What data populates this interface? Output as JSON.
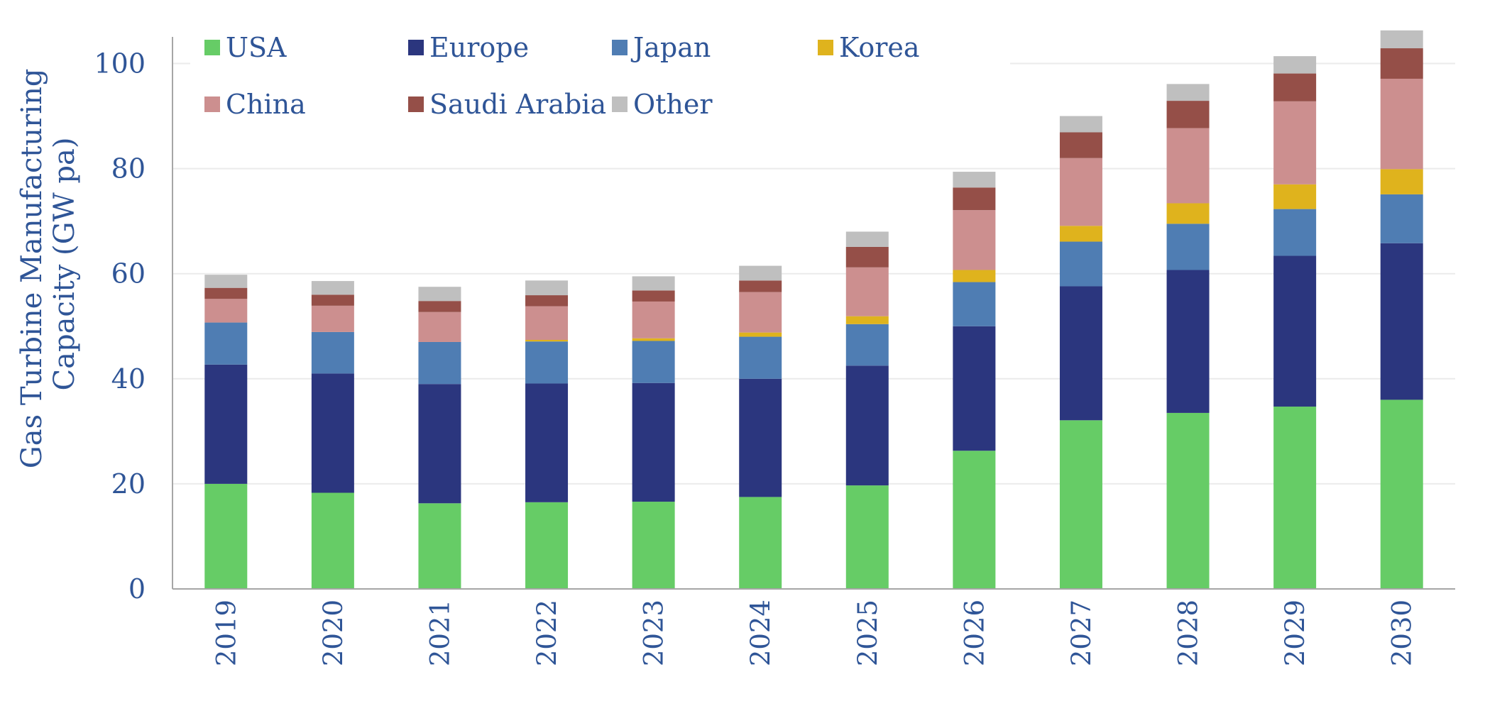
{
  "chart_data": {
    "type": "bar",
    "stacked": true,
    "categories": [
      "2019",
      "2020",
      "2021",
      "2022",
      "2023",
      "2024",
      "2025",
      "2026",
      "2027",
      "2028",
      "2029",
      "2030"
    ],
    "ylabel_lines": [
      "Gas Turbine Manufacturing",
      "Capacity (GW pa)"
    ],
    "ylim": [
      0,
      105
    ],
    "yticks": [
      0,
      20,
      40,
      60,
      80,
      100
    ],
    "grid": true,
    "legend_placement": "top-left",
    "series": [
      {
        "name": "USA",
        "color": "#66cc66",
        "values": [
          20.0,
          18.3,
          16.3,
          16.5,
          16.6,
          17.5,
          19.7,
          26.3,
          32.1,
          33.5,
          34.7,
          36.0
        ]
      },
      {
        "name": "Europe",
        "color": "#2b367e",
        "values": [
          22.7,
          22.7,
          22.7,
          22.6,
          22.6,
          22.5,
          22.8,
          23.7,
          25.5,
          27.2,
          28.7,
          29.8
        ]
      },
      {
        "name": "Japan",
        "color": "#4f7db3",
        "values": [
          8.0,
          7.9,
          8.0,
          8.0,
          8.0,
          8.0,
          7.9,
          8.4,
          8.5,
          8.8,
          8.9,
          9.3
        ]
      },
      {
        "name": "Korea",
        "color": "#dfb31d",
        "values": [
          0.0,
          0.0,
          0.0,
          0.3,
          0.5,
          0.8,
          1.5,
          2.3,
          3.0,
          3.9,
          4.7,
          4.8
        ]
      },
      {
        "name": "China",
        "color": "#cc8f8f",
        "values": [
          4.5,
          5.0,
          5.7,
          6.4,
          7.0,
          7.7,
          9.3,
          11.4,
          12.9,
          14.3,
          15.8,
          17.2
        ]
      },
      {
        "name": "Saudi Arabia",
        "color": "#954f48",
        "values": [
          2.1,
          2.1,
          2.1,
          2.1,
          2.1,
          2.2,
          3.9,
          4.3,
          4.9,
          5.2,
          5.3,
          5.8
        ]
      },
      {
        "name": "Other",
        "color": "#bfbfbf",
        "values": [
          2.5,
          2.6,
          2.7,
          2.8,
          2.7,
          2.8,
          2.9,
          3.0,
          3.1,
          3.2,
          3.3,
          3.4
        ]
      }
    ]
  }
}
